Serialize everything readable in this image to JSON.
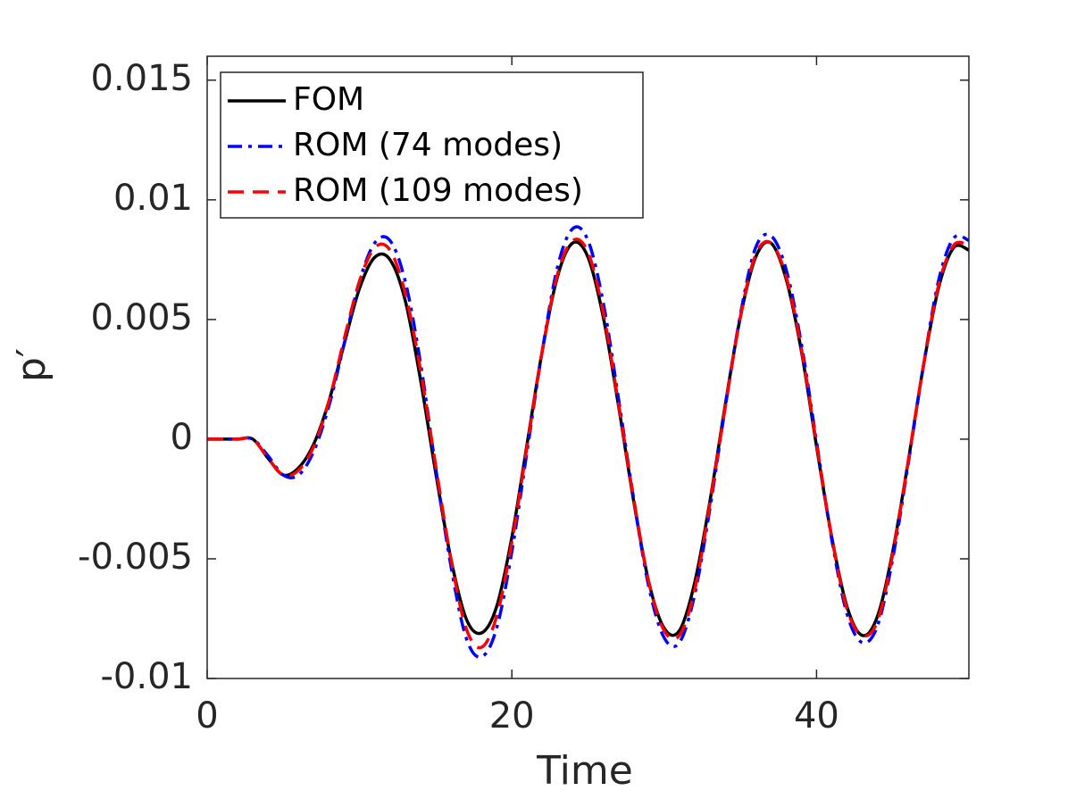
{
  "chart_data": {
    "type": "line",
    "xlabel": "Time",
    "ylabel": "p′",
    "xlim": [
      0,
      50
    ],
    "ylim": [
      -0.01,
      0.016
    ],
    "xticks": [
      0,
      20,
      40
    ],
    "yticks": [
      -0.01,
      -0.005,
      0,
      0.005,
      0.01,
      0.015
    ],
    "legend": "upper-left",
    "x": [
      0,
      1,
      2,
      3,
      4,
      5,
      6,
      7,
      8,
      9,
      10,
      11,
      12,
      13,
      14,
      15,
      16,
      17,
      18,
      19,
      20,
      21,
      22,
      23,
      24,
      25,
      26,
      27,
      28,
      29,
      30,
      31,
      32,
      33,
      34,
      35,
      36,
      37,
      38,
      39,
      40,
      41,
      42,
      43,
      44,
      45,
      46,
      47,
      48,
      49,
      50
    ],
    "series": [
      {
        "name": "FOM",
        "color": "#000000",
        "dash": "solid",
        "values": [
          0,
          0,
          0,
          0,
          -0.0008,
          -0.0015,
          -0.0012,
          -0.0002,
          0.0016,
          0.004,
          0.0063,
          0.0076,
          0.0075,
          0.0058,
          0.0025,
          -0.0014,
          -0.005,
          -0.0075,
          -0.0081,
          -0.007,
          -0.0041,
          -0.0002,
          0.0037,
          0.0068,
          0.0082,
          0.0076,
          0.0051,
          0.0014,
          -0.0026,
          -0.006,
          -0.0079,
          -0.008,
          -0.006,
          -0.0026,
          0.0014,
          0.0051,
          0.0076,
          0.0082,
          0.0067,
          0.0037,
          -0.0003,
          -0.0041,
          -0.007,
          -0.0082,
          -0.0074,
          -0.0047,
          -0.001,
          0.003,
          0.0063,
          0.008,
          0.0079
        ]
      },
      {
        "name": "ROM (74 modes)",
        "color": "#0000ff",
        "dash": "dash-dot",
        "values": [
          0,
          0,
          0,
          0,
          -0.0007,
          -0.0015,
          -0.0015,
          -0.0005,
          0.0014,
          0.004,
          0.0066,
          0.0082,
          0.0083,
          0.0066,
          0.0032,
          -0.0012,
          -0.0053,
          -0.0083,
          -0.0091,
          -0.0079,
          -0.0047,
          -0.0005,
          0.0037,
          0.0072,
          0.0088,
          0.0083,
          0.0057,
          0.0017,
          -0.0025,
          -0.0062,
          -0.0083,
          -0.0085,
          -0.0065,
          -0.0029,
          0.0013,
          0.0052,
          0.008,
          0.0085,
          0.0071,
          0.004,
          -0.0001,
          -0.0042,
          -0.0073,
          -0.0085,
          -0.0078,
          -0.005,
          -0.0011,
          0.003,
          0.0066,
          0.0084,
          0.0083
        ]
      },
      {
        "name": "ROM (109 modes)",
        "color": "#ff0000",
        "dash": "dashed",
        "values": [
          0,
          0,
          0,
          0,
          -0.0008,
          -0.0015,
          -0.0013,
          -0.0003,
          0.0016,
          0.0042,
          0.0066,
          0.008,
          0.0079,
          0.0061,
          0.0029,
          -0.0011,
          -0.005,
          -0.0079,
          -0.0087,
          -0.0074,
          -0.0043,
          -0.0003,
          0.0037,
          0.0069,
          0.0083,
          0.0078,
          0.0053,
          0.0015,
          -0.0025,
          -0.006,
          -0.008,
          -0.0082,
          -0.0063,
          -0.0027,
          0.0013,
          0.0051,
          0.0077,
          0.0082,
          0.0068,
          0.0038,
          -0.0002,
          -0.0041,
          -0.0071,
          -0.0082,
          -0.0076,
          -0.0048,
          -0.001,
          0.003,
          0.0064,
          0.0081,
          0.0081
        ]
      }
    ]
  }
}
